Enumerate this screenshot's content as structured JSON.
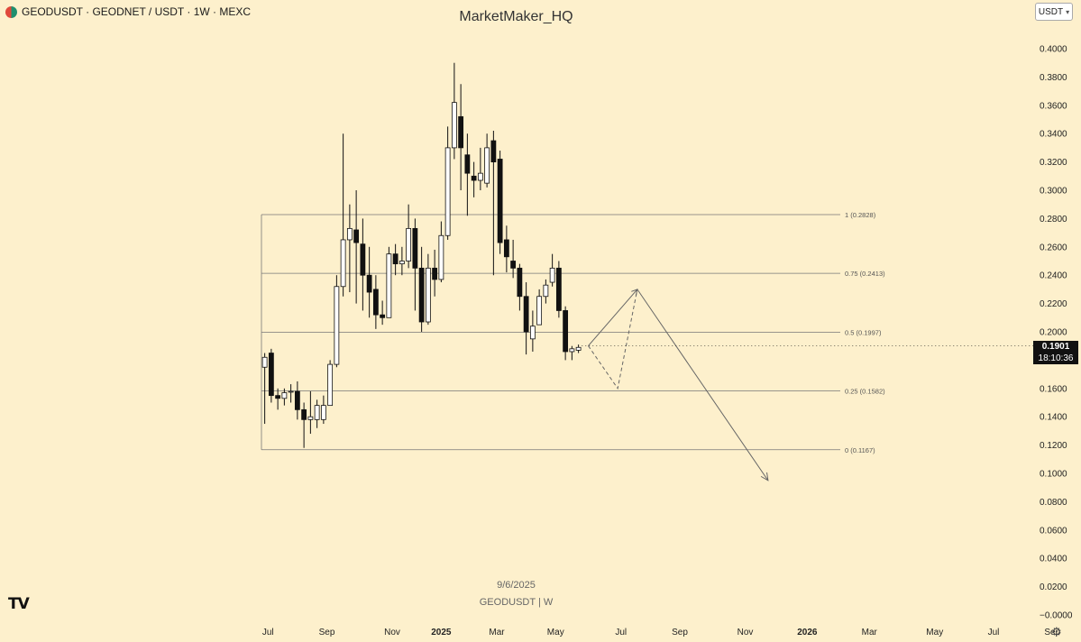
{
  "header": {
    "symbol_line": "GEODUSDT · GEODNET / USDT · 1W · MEXC"
  },
  "watermark": {
    "author": "MarketMaker_HQ",
    "date": "9/6/2025",
    "symbol": "GEODUSDT | W"
  },
  "currency_button": {
    "label": "USDT"
  },
  "last_price": {
    "value": "0.1901",
    "countdown": "18:10:36"
  },
  "icons": {
    "logo": "tradingview-logo-icon",
    "settings": "gear-icon",
    "symbol": "geodnet-coin-icon"
  },
  "colors": {
    "background": "#fdf0cc",
    "bull_body": "#ffffff",
    "bear_body": "#111111",
    "line": "#555555"
  },
  "chart_data": {
    "type": "candlestick",
    "timeframe": "1W",
    "y_axis": {
      "range": [
        0.0,
        0.42
      ],
      "ticks": [
        "0.4000",
        "0.3800",
        "0.3600",
        "0.3400",
        "0.3200",
        "0.3000",
        "0.2800",
        "0.2600",
        "0.2400",
        "0.2200",
        "0.2000",
        "0.1800",
        "0.1600",
        "0.1400",
        "0.1200",
        "0.1000",
        "0.0800",
        "0.0600",
        "0.0400",
        "0.0200",
        "−0.0000"
      ],
      "tick_values": [
        0.4,
        0.38,
        0.36,
        0.34,
        0.32,
        0.3,
        0.28,
        0.26,
        0.24,
        0.22,
        0.2,
        0.18,
        0.16,
        0.14,
        0.12,
        0.1,
        0.08,
        0.06,
        0.04,
        0.02,
        0.0
      ]
    },
    "x_axis": {
      "labels": [
        "Jul",
        "Sep",
        "Nov",
        "2025",
        "Mar",
        "May",
        "Jul",
        "Sep",
        "Nov",
        "2026",
        "Mar",
        "May",
        "Jul",
        "Sep"
      ],
      "label_weeks": [
        1,
        10,
        20,
        27.5,
        36,
        45,
        55,
        64,
        74,
        83.5,
        93,
        103,
        112,
        121
      ]
    },
    "candles": [
      [
        0.175,
        0.182,
        0.135,
        0.185
      ],
      [
        0.185,
        0.155,
        0.15,
        0.188
      ],
      [
        0.155,
        0.153,
        0.145,
        0.16
      ],
      [
        0.153,
        0.157,
        0.148,
        0.16
      ],
      [
        0.158,
        0.158,
        0.15,
        0.163
      ],
      [
        0.158,
        0.145,
        0.138,
        0.165
      ],
      [
        0.145,
        0.138,
        0.118,
        0.15
      ],
      [
        0.138,
        0.14,
        0.128,
        0.158
      ],
      [
        0.138,
        0.148,
        0.132,
        0.152
      ],
      [
        0.138,
        0.148,
        0.135,
        0.155
      ],
      [
        0.148,
        0.177,
        0.148,
        0.18
      ],
      [
        0.177,
        0.232,
        0.175,
        0.24
      ],
      [
        0.232,
        0.265,
        0.225,
        0.34
      ],
      [
        0.265,
        0.273,
        0.228,
        0.29
      ],
      [
        0.272,
        0.263,
        0.22,
        0.3
      ],
      [
        0.262,
        0.24,
        0.215,
        0.28
      ],
      [
        0.24,
        0.228,
        0.21,
        0.26
      ],
      [
        0.23,
        0.212,
        0.202,
        0.24
      ],
      [
        0.212,
        0.21,
        0.205,
        0.222
      ],
      [
        0.21,
        0.255,
        0.21,
        0.26
      ],
      [
        0.255,
        0.248,
        0.24,
        0.262
      ],
      [
        0.248,
        0.25,
        0.24,
        0.26
      ],
      [
        0.25,
        0.273,
        0.245,
        0.29
      ],
      [
        0.273,
        0.245,
        0.215,
        0.28
      ],
      [
        0.245,
        0.207,
        0.2,
        0.26
      ],
      [
        0.207,
        0.245,
        0.205,
        0.255
      ],
      [
        0.245,
        0.237,
        0.225,
        0.258
      ],
      [
        0.237,
        0.268,
        0.235,
        0.278
      ],
      [
        0.268,
        0.33,
        0.265,
        0.345
      ],
      [
        0.33,
        0.362,
        0.322,
        0.39
      ],
      [
        0.352,
        0.33,
        0.3,
        0.375
      ],
      [
        0.325,
        0.312,
        0.282,
        0.34
      ],
      [
        0.31,
        0.307,
        0.295,
        0.32
      ],
      [
        0.307,
        0.312,
        0.3,
        0.33
      ],
      [
        0.305,
        0.33,
        0.302,
        0.34
      ],
      [
        0.335,
        0.32,
        0.24,
        0.342
      ],
      [
        0.322,
        0.263,
        0.255,
        0.328
      ],
      [
        0.265,
        0.253,
        0.242,
        0.275
      ],
      [
        0.25,
        0.245,
        0.238,
        0.265
      ],
      [
        0.245,
        0.225,
        0.215,
        0.248
      ],
      [
        0.225,
        0.2,
        0.184,
        0.235
      ],
      [
        0.195,
        0.204,
        0.186,
        0.215
      ],
      [
        0.205,
        0.225,
        0.205,
        0.23
      ],
      [
        0.225,
        0.233,
        0.22,
        0.237
      ],
      [
        0.235,
        0.245,
        0.232,
        0.255
      ],
      [
        0.245,
        0.215,
        0.21,
        0.25
      ],
      [
        0.215,
        0.186,
        0.18,
        0.218
      ],
      [
        0.186,
        0.188,
        0.18,
        0.19
      ],
      [
        0.187,
        0.189,
        0.185,
        0.191
      ]
    ],
    "candle_fields": [
      "open",
      "close",
      "low",
      "high"
    ],
    "fib_levels": [
      {
        "label": "1 (0.2828)",
        "value": 0.2828
      },
      {
        "label": "0.75 (0.2413)",
        "value": 0.2413
      },
      {
        "label": "0.5 (0.1997)",
        "value": 0.1997
      },
      {
        "label": "0.25 (0.1582)",
        "value": 0.1582
      },
      {
        "label": "0 (0.1167)",
        "value": 0.1167
      }
    ],
    "projection_solid": [
      [
        50,
        0.1901
      ],
      [
        57.5,
        0.23
      ],
      [
        77.5,
        0.095
      ]
    ],
    "projection_dashed": [
      [
        50,
        0.1901
      ],
      [
        54.5,
        0.16
      ],
      [
        57.5,
        0.23
      ]
    ],
    "last_price": 0.1901
  }
}
